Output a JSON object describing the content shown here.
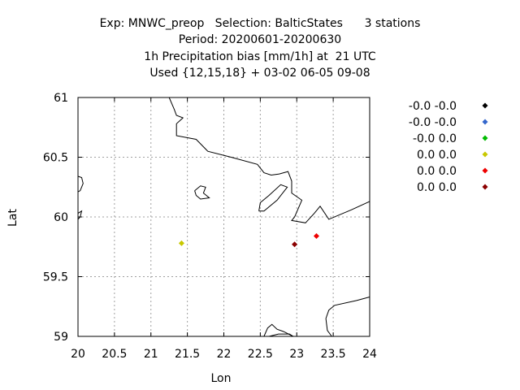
{
  "chart_data": {
    "type": "scatter",
    "title_lines": [
      "Exp: MNWC_preop   Selection: BalticStates      3 stations",
      "Period: 20200601-20200630",
      "1h Precipitation bias [mm/1h] at  21 UTC",
      "Used {12,15,18} + 03-02 06-05 09-08"
    ],
    "xlabel": "Lon",
    "ylabel": "Lat",
    "xlim": [
      20,
      24
    ],
    "ylim": [
      59,
      61
    ],
    "xticks": [
      20,
      20.5,
      21,
      21.5,
      22,
      22.5,
      23,
      23.5,
      24
    ],
    "xtick_labels": [
      "20",
      "20.5",
      "21",
      "21.5",
      "22",
      "22.5",
      "23",
      "23.5",
      "24"
    ],
    "yticks": [
      59,
      59.5,
      60,
      60.5,
      61
    ],
    "ytick_labels": [
      "59",
      "59.5",
      "60",
      "60.5",
      "61"
    ],
    "grid": true,
    "legend_placement": "right",
    "series": [
      {
        "name": "-0.0 -0.0",
        "color": "#000000",
        "points": []
      },
      {
        "name": "-0.0 -0.0",
        "color": "#3366cc",
        "points": []
      },
      {
        "name": "-0.0 0.0",
        "color": "#00bb00",
        "points": []
      },
      {
        "name": "0.0 0.0",
        "color": "#c8c800",
        "points": [
          [
            21.42,
            59.78
          ]
        ]
      },
      {
        "name": "0.0 0.0",
        "color": "#ee0000",
        "points": [
          [
            23.27,
            59.84
          ]
        ]
      },
      {
        "name": "0.0 0.0",
        "color": "#8b0000",
        "points": [
          [
            22.97,
            59.77
          ]
        ]
      }
    ],
    "coastlines": [
      [
        [
          21.25,
          61.0
        ],
        [
          21.32,
          60.9
        ],
        [
          21.35,
          60.85
        ],
        [
          21.44,
          60.83
        ],
        [
          21.35,
          60.78
        ],
        [
          21.35,
          60.68
        ],
        [
          21.62,
          60.65
        ],
        [
          21.78,
          60.55
        ],
        [
          22.1,
          60.5
        ],
        [
          22.46,
          60.44
        ],
        [
          22.55,
          60.37
        ],
        [
          22.65,
          60.35
        ],
        [
          22.76,
          60.36
        ],
        [
          22.88,
          60.38
        ],
        [
          22.93,
          60.3
        ],
        [
          22.93,
          60.2
        ],
        [
          23.07,
          60.14
        ],
        [
          22.97,
          60.0
        ],
        [
          22.93,
          59.97
        ],
        [
          23.12,
          59.95
        ],
        [
          23.24,
          60.03
        ],
        [
          23.32,
          60.09
        ],
        [
          23.44,
          59.98
        ],
        [
          23.75,
          60.06
        ],
        [
          24.0,
          60.13
        ]
      ],
      [
        [
          22.48,
          60.05
        ],
        [
          22.5,
          60.12
        ],
        [
          22.62,
          60.18
        ],
        [
          22.78,
          60.27
        ],
        [
          22.87,
          60.25
        ],
        [
          22.73,
          60.14
        ],
        [
          22.55,
          60.05
        ],
        [
          22.48,
          60.05
        ]
      ],
      [
        [
          21.6,
          60.22
        ],
        [
          21.68,
          60.26
        ],
        [
          21.75,
          60.25
        ],
        [
          21.72,
          60.2
        ],
        [
          21.8,
          60.16
        ],
        [
          21.68,
          60.15
        ],
        [
          21.62,
          60.18
        ],
        [
          21.6,
          60.22
        ]
      ],
      [
        [
          20.0,
          60.34
        ],
        [
          20.05,
          60.33
        ],
        [
          20.07,
          60.28
        ],
        [
          20.03,
          60.22
        ],
        [
          20.0,
          60.21
        ]
      ],
      [
        [
          20.0,
          60.03
        ],
        [
          20.05,
          60.05
        ],
        [
          20.03,
          60.0
        ],
        [
          20.0,
          59.98
        ]
      ],
      [
        [
          22.55,
          59.0
        ],
        [
          22.6,
          59.07
        ],
        [
          22.66,
          59.1
        ],
        [
          22.73,
          59.06
        ],
        [
          22.82,
          59.04
        ],
        [
          22.95,
          59.0
        ]
      ],
      [
        [
          22.62,
          59.0
        ],
        [
          22.75,
          59.02
        ],
        [
          22.9,
          59.02
        ],
        [
          22.95,
          59.0
        ]
      ],
      [
        [
          23.48,
          59.0
        ],
        [
          23.42,
          59.05
        ],
        [
          23.4,
          59.15
        ],
        [
          23.44,
          59.22
        ],
        [
          23.52,
          59.26
        ],
        [
          23.82,
          59.3
        ],
        [
          24.0,
          59.33
        ]
      ]
    ]
  }
}
